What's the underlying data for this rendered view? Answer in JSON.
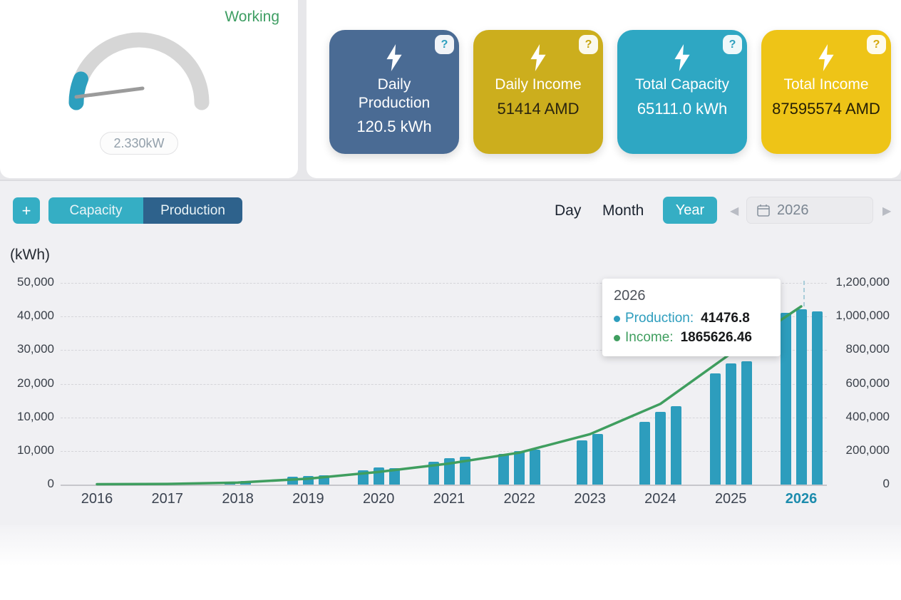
{
  "status_panel": {
    "status_label": "Working",
    "power_value": "2.330kW"
  },
  "stat_cards": [
    {
      "title": "Daily Production",
      "value": "120.5 kWh",
      "bg": "#4a6b94",
      "value_color": "#ffffff",
      "help_glyph": "?",
      "help_color": "#2d9fbe"
    },
    {
      "title": "Daily Income",
      "value": "51414 AMD",
      "bg": "#ccae1d",
      "value_color": "#2a2410",
      "help_glyph": "?",
      "help_color": "#c7a50f"
    },
    {
      "title": "Total Capacity",
      "value": "65111.0 kWh",
      "bg": "#2ea7c3",
      "value_color": "#ffffff",
      "help_glyph": "?",
      "help_color": "#2d9fbe"
    },
    {
      "title": "Total Income",
      "value": "87595574 AMD",
      "bg": "#eec417",
      "value_color": "#241e06",
      "help_glyph": "?",
      "help_color": "#d4a90c"
    }
  ],
  "toolbar": {
    "add_label": "+",
    "series_toggles": [
      {
        "label": "Capacity"
      },
      {
        "label": "Production"
      }
    ],
    "active_series": "Production",
    "periods": [
      {
        "label": "Day"
      },
      {
        "label": "Month"
      },
      {
        "label": "Year"
      }
    ],
    "active_period": "Year",
    "year_value": "2026",
    "prev_glyph": "◀",
    "next_glyph": "▶"
  },
  "chart_data": {
    "type": "bar+line",
    "unit_left": "(kWh)",
    "categories": [
      "2016",
      "2017",
      "2018",
      "2019",
      "2020",
      "2021",
      "2022",
      "2023",
      "2024",
      "2025",
      "2026"
    ],
    "left_axis_labels": [
      "50,000",
      "40,000",
      "30,000",
      "20,000",
      "10,000",
      "10,000",
      "0"
    ],
    "right_axis_labels": [
      "1,200,000",
      "1,000,000",
      "800,000",
      "600,000",
      "400,000",
      "200,000",
      "0"
    ],
    "left_axis_max": 50000,
    "right_axis_max": 1200000,
    "active_year": "2026",
    "grid": true,
    "series": [
      {
        "name": "Production",
        "type": "bar",
        "unit": "kWh",
        "color": "#2d9dbd",
        "grouped_values": [
          [],
          [],
          [
            800,
            900
          ],
          [
            1900,
            2100,
            2300
          ],
          [
            3600,
            4300,
            4100
          ],
          [
            5600,
            6600,
            6900
          ],
          [
            7600,
            8300,
            8600
          ],
          [
            11000,
            12500
          ],
          [
            15500,
            18000,
            19500
          ],
          [
            27500,
            30000,
            30500
          ],
          [
            42500,
            43500,
            43000
          ]
        ]
      },
      {
        "name": "Income",
        "type": "line",
        "unit": "AMD",
        "color": "#3f9e5f",
        "values": [
          2000,
          4000,
          12000,
          35000,
          75000,
          125000,
          190000,
          300000,
          480000,
          780000,
          1060000
        ]
      }
    ]
  },
  "tooltip": {
    "title": "2026",
    "rows": [
      {
        "label": "Production:",
        "value": "41476.8",
        "color": "#2d9dbd"
      },
      {
        "label": "Income:",
        "value": "1865626.46",
        "color": "#3f9e5f"
      }
    ]
  }
}
